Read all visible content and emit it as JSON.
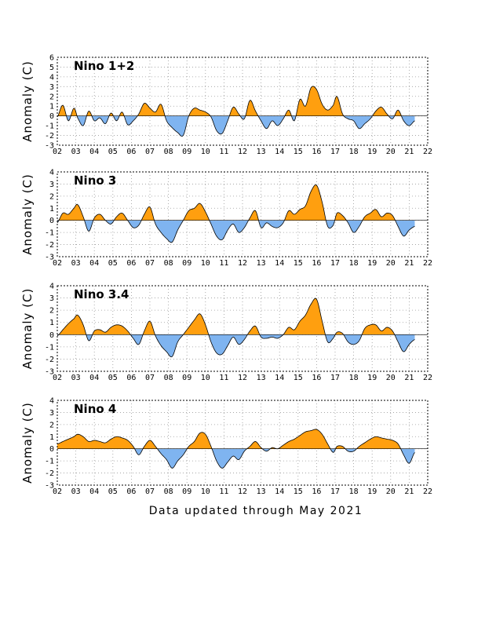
{
  "footer": "Data updated through May 2021",
  "colors": {
    "positive": "#ff9f0f",
    "negative": "#7fb4f0"
  },
  "chart_data": [
    {
      "type": "area",
      "title": "Nino 1+2",
      "ylabel": "Anomaly (C)",
      "ylim": [
        -3,
        6
      ],
      "yticks": [
        -3,
        -2,
        -1,
        0,
        1,
        2,
        3,
        4,
        5,
        6
      ],
      "xlim": [
        2002,
        2022
      ],
      "xticks": [
        "02",
        "03",
        "04",
        "05",
        "06",
        "07",
        "08",
        "09",
        "10",
        "11",
        "12",
        "13",
        "14",
        "15",
        "16",
        "17",
        "18",
        "19",
        "20",
        "21",
        "22"
      ],
      "grid": true,
      "x": [
        2002.0,
        2002.3,
        2002.6,
        2002.9,
        2003.1,
        2003.4,
        2003.7,
        2004.0,
        2004.3,
        2004.6,
        2004.9,
        2005.2,
        2005.5,
        2005.8,
        2006.1,
        2006.4,
        2006.7,
        2007.0,
        2007.3,
        2007.6,
        2007.9,
        2008.2,
        2008.5,
        2008.8,
        2009.1,
        2009.4,
        2009.7,
        2010.0,
        2010.3,
        2010.6,
        2010.9,
        2011.2,
        2011.5,
        2011.8,
        2012.1,
        2012.4,
        2012.7,
        2013.0,
        2013.3,
        2013.6,
        2013.9,
        2014.2,
        2014.5,
        2014.8,
        2015.1,
        2015.4,
        2015.7,
        2016.0,
        2016.3,
        2016.6,
        2016.9,
        2017.1,
        2017.4,
        2017.7,
        2018.0,
        2018.3,
        2018.6,
        2018.9,
        2019.2,
        2019.5,
        2019.8,
        2020.1,
        2020.4,
        2020.7,
        2021.0,
        2021.3
      ],
      "values": [
        -0.1,
        1.1,
        -0.5,
        0.8,
        -0.2,
        -1.0,
        0.5,
        -0.5,
        -0.2,
        -0.8,
        0.3,
        -0.5,
        0.4,
        -0.9,
        -0.5,
        0.2,
        1.3,
        0.8,
        0.4,
        1.2,
        -0.5,
        -1.2,
        -1.7,
        -2.0,
        0.0,
        0.8,
        0.6,
        0.4,
        -0.1,
        -1.5,
        -1.8,
        -0.5,
        0.9,
        0.2,
        -0.3,
        1.6,
        0.5,
        -0.5,
        -1.3,
        -0.5,
        -1.0,
        -0.3,
        0.6,
        -0.5,
        1.7,
        1.0,
        2.9,
        2.7,
        1.2,
        0.6,
        1.1,
        2.0,
        0.2,
        -0.3,
        -0.5,
        -1.3,
        -0.8,
        -0.3,
        0.5,
        0.9,
        0.2,
        -0.3,
        0.6,
        -0.5,
        -1.0,
        -0.5
      ]
    },
    {
      "type": "area",
      "title": "Nino 3",
      "ylabel": "Anomaly (C)",
      "ylim": [
        -3,
        4
      ],
      "yticks": [
        -3,
        -2,
        -1,
        0,
        1,
        2,
        3,
        4
      ],
      "xlim": [
        2002,
        2022
      ],
      "xticks": [
        "02",
        "03",
        "04",
        "05",
        "06",
        "07",
        "08",
        "09",
        "10",
        "11",
        "12",
        "13",
        "14",
        "15",
        "16",
        "17",
        "18",
        "19",
        "20",
        "21",
        "22"
      ],
      "grid": true,
      "x": [
        2002.0,
        2002.3,
        2002.6,
        2002.9,
        2003.1,
        2003.4,
        2003.7,
        2004.0,
        2004.3,
        2004.6,
        2004.9,
        2005.2,
        2005.5,
        2005.8,
        2006.1,
        2006.4,
        2006.7,
        2007.0,
        2007.3,
        2007.6,
        2007.9,
        2008.2,
        2008.5,
        2008.8,
        2009.1,
        2009.4,
        2009.7,
        2010.0,
        2010.3,
        2010.6,
        2010.9,
        2011.2,
        2011.5,
        2011.8,
        2012.1,
        2012.4,
        2012.7,
        2013.0,
        2013.3,
        2013.6,
        2013.9,
        2014.2,
        2014.5,
        2014.8,
        2015.1,
        2015.4,
        2015.7,
        2016.0,
        2016.3,
        2016.6,
        2016.9,
        2017.1,
        2017.4,
        2017.7,
        2018.0,
        2018.3,
        2018.6,
        2018.9,
        2019.2,
        2019.5,
        2019.8,
        2020.1,
        2020.4,
        2020.7,
        2021.0,
        2021.3
      ],
      "values": [
        -0.2,
        0.6,
        0.5,
        1.0,
        1.3,
        0.3,
        -0.9,
        0.2,
        0.5,
        0.0,
        -0.3,
        0.3,
        0.6,
        0.0,
        -0.6,
        -0.4,
        0.5,
        1.1,
        -0.3,
        -1.0,
        -1.5,
        -1.8,
        -0.8,
        0.0,
        0.8,
        1.0,
        1.4,
        0.7,
        -0.3,
        -1.3,
        -1.6,
        -0.8,
        -0.3,
        -1.0,
        -0.6,
        0.2,
        0.8,
        -0.6,
        -0.2,
        -0.5,
        -0.6,
        -0.2,
        0.8,
        0.5,
        0.9,
        1.2,
        2.4,
        2.9,
        1.5,
        -0.5,
        -0.4,
        0.6,
        0.4,
        -0.2,
        -1.0,
        -0.5,
        0.3,
        0.6,
        0.9,
        0.3,
        0.6,
        0.4,
        -0.5,
        -1.3,
        -0.8,
        -0.5
      ]
    },
    {
      "type": "area",
      "title": "Nino 3.4",
      "ylabel": "Anomaly (C)",
      "ylim": [
        -3,
        4
      ],
      "yticks": [
        -3,
        -2,
        -1,
        0,
        1,
        2,
        3,
        4
      ],
      "xlim": [
        2002,
        2022
      ],
      "xticks": [
        "02",
        "03",
        "04",
        "05",
        "06",
        "07",
        "08",
        "09",
        "10",
        "11",
        "12",
        "13",
        "14",
        "15",
        "16",
        "17",
        "18",
        "19",
        "20",
        "21",
        "22"
      ],
      "grid": true,
      "x": [
        2002.0,
        2002.3,
        2002.6,
        2002.9,
        2003.1,
        2003.4,
        2003.7,
        2004.0,
        2004.3,
        2004.6,
        2004.9,
        2005.2,
        2005.5,
        2005.8,
        2006.1,
        2006.4,
        2006.7,
        2007.0,
        2007.3,
        2007.6,
        2007.9,
        2008.2,
        2008.5,
        2008.8,
        2009.1,
        2009.4,
        2009.7,
        2010.0,
        2010.3,
        2010.6,
        2010.9,
        2011.2,
        2011.5,
        2011.8,
        2012.1,
        2012.4,
        2012.7,
        2013.0,
        2013.3,
        2013.6,
        2013.9,
        2014.2,
        2014.5,
        2014.8,
        2015.1,
        2015.4,
        2015.7,
        2016.0,
        2016.3,
        2016.6,
        2016.9,
        2017.1,
        2017.4,
        2017.7,
        2018.0,
        2018.3,
        2018.6,
        2018.9,
        2019.2,
        2019.5,
        2019.8,
        2020.1,
        2020.4,
        2020.7,
        2021.0,
        2021.3
      ],
      "values": [
        -0.1,
        0.4,
        0.9,
        1.3,
        1.6,
        0.8,
        -0.5,
        0.3,
        0.4,
        0.2,
        0.6,
        0.8,
        0.7,
        0.3,
        -0.3,
        -0.8,
        0.3,
        1.1,
        -0.1,
        -0.9,
        -1.4,
        -1.8,
        -0.6,
        0.0,
        0.6,
        1.2,
        1.7,
        0.8,
        -0.6,
        -1.5,
        -1.6,
        -0.9,
        -0.2,
        -0.8,
        -0.4,
        0.3,
        0.7,
        -0.2,
        -0.3,
        -0.2,
        -0.3,
        0.0,
        0.6,
        0.4,
        1.1,
        1.6,
        2.5,
        2.9,
        1.1,
        -0.6,
        -0.3,
        0.2,
        0.1,
        -0.6,
        -0.8,
        -0.5,
        0.5,
        0.8,
        0.8,
        0.3,
        0.6,
        0.3,
        -0.6,
        -1.4,
        -0.8,
        -0.4
      ]
    },
    {
      "type": "area",
      "title": "Nino 4",
      "ylabel": "Anomaly (C)",
      "ylim": [
        -3,
        4
      ],
      "yticks": [
        -3,
        -2,
        -1,
        0,
        1,
        2,
        3,
        4
      ],
      "xlim": [
        2002,
        2022
      ],
      "xticks": [
        "02",
        "03",
        "04",
        "05",
        "06",
        "07",
        "08",
        "09",
        "10",
        "11",
        "12",
        "13",
        "14",
        "15",
        "16",
        "17",
        "18",
        "19",
        "20",
        "21",
        "22"
      ],
      "grid": true,
      "x": [
        2002.0,
        2002.3,
        2002.6,
        2002.9,
        2003.1,
        2003.4,
        2003.7,
        2004.0,
        2004.3,
        2004.6,
        2004.9,
        2005.2,
        2005.5,
        2005.8,
        2006.1,
        2006.4,
        2006.7,
        2007.0,
        2007.3,
        2007.6,
        2007.9,
        2008.2,
        2008.5,
        2008.8,
        2009.1,
        2009.4,
        2009.7,
        2010.0,
        2010.3,
        2010.6,
        2010.9,
        2011.2,
        2011.5,
        2011.8,
        2012.1,
        2012.4,
        2012.7,
        2013.0,
        2013.3,
        2013.6,
        2013.9,
        2014.2,
        2014.5,
        2014.8,
        2015.1,
        2015.4,
        2015.7,
        2016.0,
        2016.3,
        2016.6,
        2016.9,
        2017.1,
        2017.4,
        2017.7,
        2018.0,
        2018.3,
        2018.6,
        2018.9,
        2019.2,
        2019.5,
        2019.8,
        2020.1,
        2020.4,
        2020.7,
        2021.0,
        2021.3
      ],
      "values": [
        0.4,
        0.6,
        0.8,
        1.0,
        1.2,
        1.0,
        0.6,
        0.7,
        0.6,
        0.5,
        0.8,
        1.0,
        0.9,
        0.7,
        0.2,
        -0.5,
        0.2,
        0.7,
        0.2,
        -0.4,
        -0.9,
        -1.6,
        -1.0,
        -0.5,
        0.2,
        0.6,
        1.3,
        1.2,
        0.2,
        -1.0,
        -1.6,
        -1.1,
        -0.6,
        -0.9,
        -0.2,
        0.2,
        0.6,
        0.1,
        -0.2,
        0.1,
        0.0,
        0.3,
        0.6,
        0.8,
        1.1,
        1.4,
        1.5,
        1.6,
        1.2,
        0.4,
        -0.3,
        0.2,
        0.2,
        -0.2,
        -0.2,
        0.2,
        0.5,
        0.8,
        1.0,
        0.9,
        0.8,
        0.7,
        0.4,
        -0.5,
        -1.2,
        -0.3
      ]
    }
  ]
}
